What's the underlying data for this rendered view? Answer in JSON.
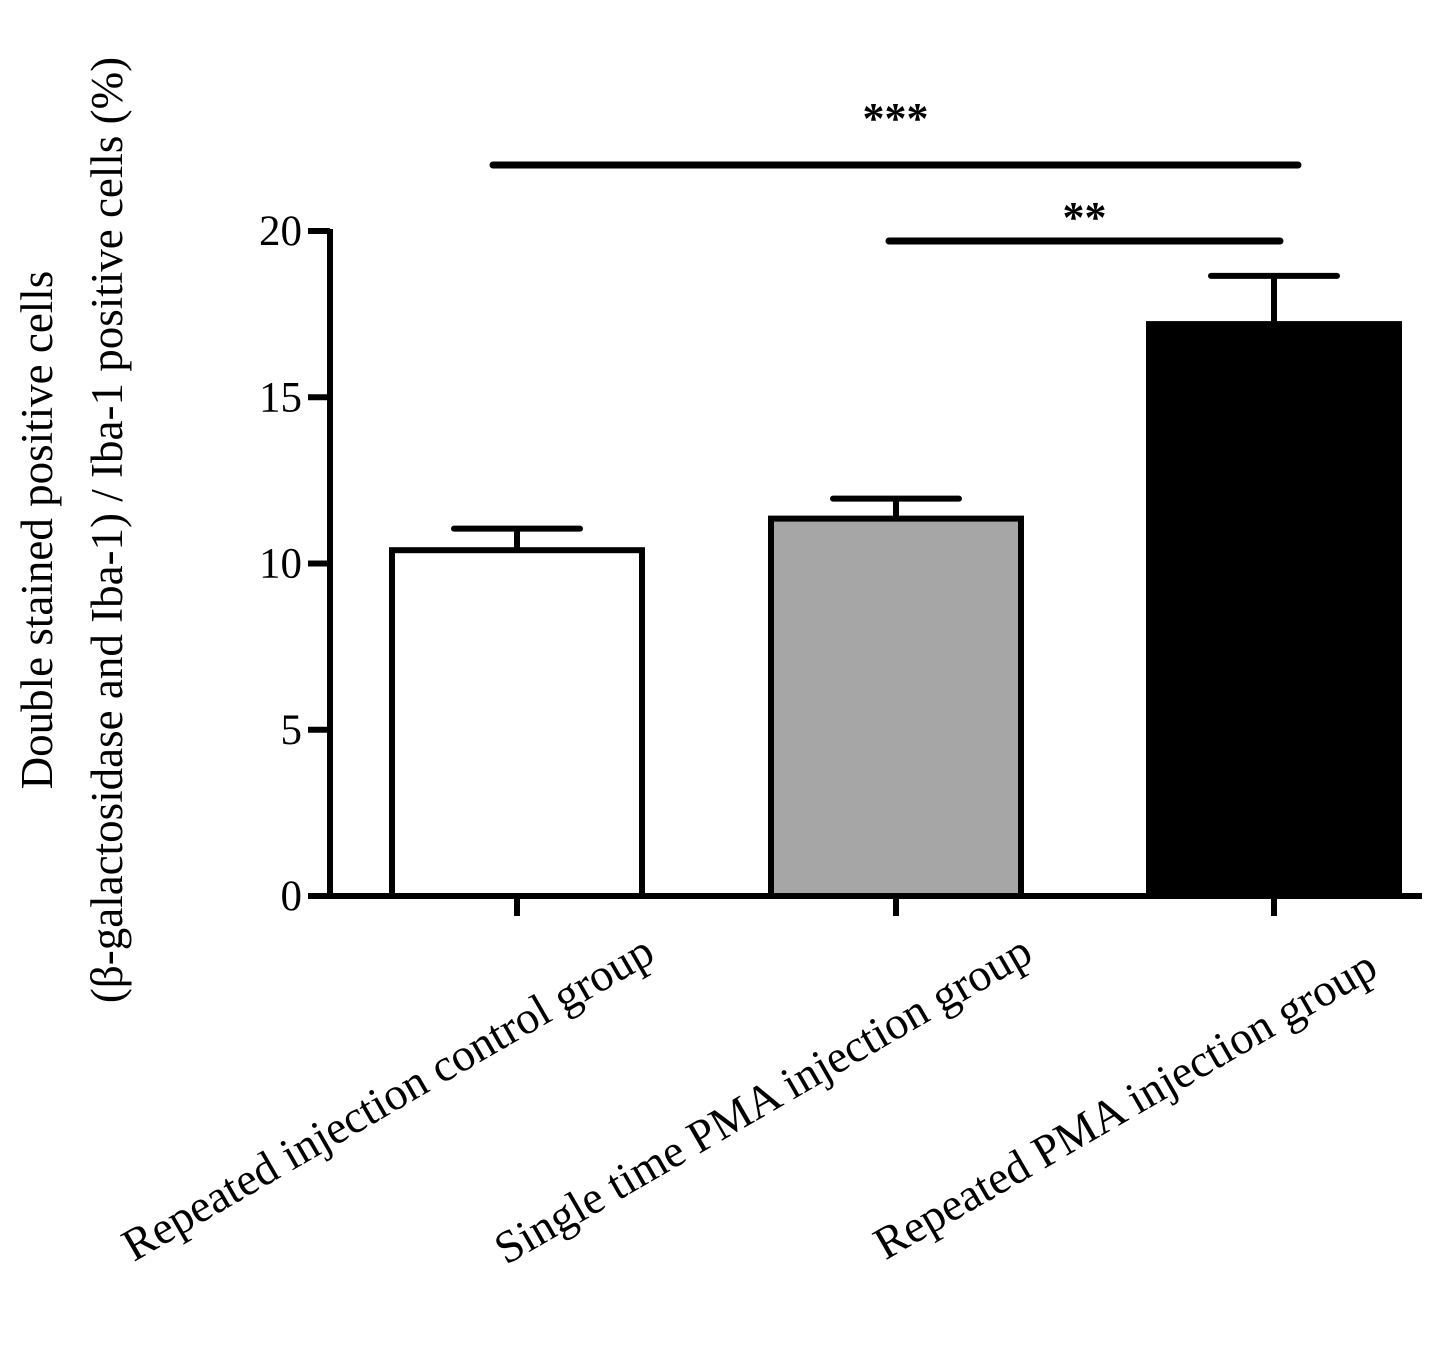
{
  "chart_data": {
    "type": "bar",
    "title": "",
    "ylabel_lines": [
      "Double stained positive cells",
      "(β-galactosidase and Iba-1) / Iba-1 positive cells (%)"
    ],
    "xlabel": "",
    "ylim": [
      0,
      20
    ],
    "yticks": [
      0,
      5,
      10,
      15,
      20
    ],
    "categories": [
      "Repeated injection control group",
      "Single time PMA injection group",
      "Repeated PMA injection group"
    ],
    "values": [
      10.4,
      11.35,
      17.2
    ],
    "errors": [
      0.65,
      0.6,
      1.45
    ],
    "bar_colors": [
      "#ffffff",
      "#a6a6a6",
      "#000000"
    ],
    "significance": [
      {
        "from": 0,
        "to": 2,
        "label": "***"
      },
      {
        "from": 1,
        "to": 2,
        "label": "**"
      }
    ],
    "grid": false,
    "legend": "none"
  }
}
